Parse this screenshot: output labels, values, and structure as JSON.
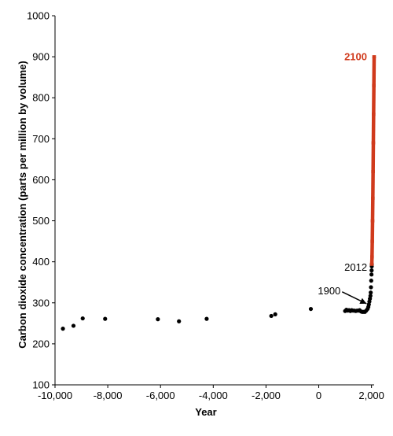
{
  "chart_data": {
    "type": "scatter",
    "xlabel": "Year",
    "ylabel": "Carbon dioxide concentration (parts per million by volume)",
    "xlim": [
      -10000,
      2100
    ],
    "ylim": [
      100,
      1000
    ],
    "x_ticks": [
      -10000,
      -8000,
      -6000,
      -4000,
      -2000,
      0,
      2000
    ],
    "x_tick_labels": [
      "-10,000",
      "-8,000",
      "-6,000",
      "-4,000",
      "-2,000",
      "0",
      "2,000"
    ],
    "y_ticks": [
      100,
      200,
      300,
      400,
      500,
      600,
      700,
      800,
      900,
      1000
    ],
    "y_tick_labels": [
      "100",
      "200",
      "300",
      "400",
      "500",
      "600",
      "700",
      "800",
      "900",
      "1000"
    ],
    "grid": false,
    "legend": "none",
    "colors": {
      "historical": "#000000",
      "projection": "#d03a1c"
    },
    "series": [
      {
        "values": [
          {
            "x": -9700,
            "y": 237
          },
          {
            "x": -9300,
            "y": 244
          },
          {
            "x": -8950,
            "y": 262
          },
          {
            "x": -8100,
            "y": 261
          },
          {
            "x": -6100,
            "y": 260
          },
          {
            "x": -5300,
            "y": 255
          },
          {
            "x": -4250,
            "y": 261
          },
          {
            "x": -1800,
            "y": 268
          },
          {
            "x": -1650,
            "y": 272
          },
          {
            "x": -300,
            "y": 285
          },
          {
            "x": 1000,
            "y": 280
          },
          {
            "x": 1050,
            "y": 283
          },
          {
            "x": 1100,
            "y": 281
          },
          {
            "x": 1150,
            "y": 282
          },
          {
            "x": 1200,
            "y": 280
          },
          {
            "x": 1250,
            "y": 282
          },
          {
            "x": 1300,
            "y": 281
          },
          {
            "x": 1350,
            "y": 281
          },
          {
            "x": 1400,
            "y": 280
          },
          {
            "x": 1450,
            "y": 281
          },
          {
            "x": 1500,
            "y": 281
          },
          {
            "x": 1550,
            "y": 282
          },
          {
            "x": 1600,
            "y": 279
          },
          {
            "x": 1650,
            "y": 278
          },
          {
            "x": 1700,
            "y": 278
          },
          {
            "x": 1750,
            "y": 278
          },
          {
            "x": 1800,
            "y": 281
          },
          {
            "x": 1850,
            "y": 285
          },
          {
            "x": 1880,
            "y": 290
          },
          {
            "x": 1900,
            "y": 296
          },
          {
            "x": 1920,
            "y": 303
          },
          {
            "x": 1940,
            "y": 310
          },
          {
            "x": 1960,
            "y": 317
          },
          {
            "x": 1970,
            "y": 325
          },
          {
            "x": 1980,
            "y": 338
          },
          {
            "x": 1990,
            "y": 354
          },
          {
            "x": 2000,
            "y": 369
          },
          {
            "x": 2005,
            "y": 379
          },
          {
            "x": 2010,
            "y": 389
          },
          {
            "x": 2012,
            "y": 394
          }
        ]
      },
      {
        "values": [
          {
            "x": 2012,
            "y": 394
          },
          {
            "x": 2020,
            "y": 412
          },
          {
            "x": 2030,
            "y": 450
          },
          {
            "x": 2040,
            "y": 500
          },
          {
            "x": 2050,
            "y": 555
          },
          {
            "x": 2060,
            "y": 620
          },
          {
            "x": 2070,
            "y": 690
          },
          {
            "x": 2080,
            "y": 760
          },
          {
            "x": 2090,
            "y": 830
          },
          {
            "x": 2100,
            "y": 900
          }
        ]
      }
    ],
    "annotations": [
      {
        "label": "2100",
        "x": 2100,
        "y": 900
      },
      {
        "label": "2012",
        "x": 2012,
        "y": 394
      },
      {
        "label": "1900",
        "x": 1900,
        "y": 296
      }
    ]
  }
}
